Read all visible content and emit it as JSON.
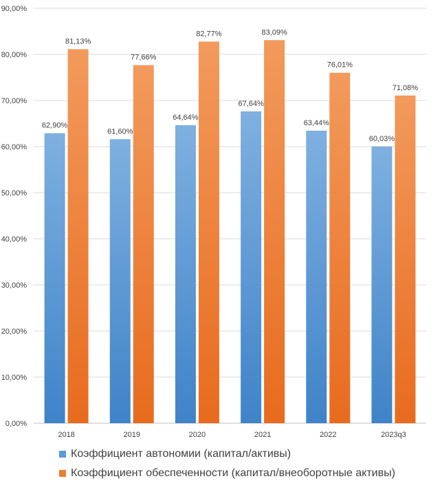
{
  "chart_data": {
    "type": "bar",
    "categories": [
      "2018",
      "2019",
      "2020",
      "2021",
      "2022",
      "2023q3"
    ],
    "series": [
      {
        "name": "Коэффициент автономии (капитал/активы)",
        "values": [
          62.9,
          61.6,
          64.64,
          67.64,
          63.44,
          60.03
        ],
        "labels": [
          "62,90%",
          "61,60%",
          "64,64%",
          "67,64%",
          "63,44%",
          "60,03%"
        ],
        "color": "#5B9BD5"
      },
      {
        "name": "Коэффициент обеспеченности (капитал/внеоборотные активы)",
        "values": [
          81.13,
          77.66,
          82.77,
          83.09,
          76.01,
          71.08
        ],
        "labels": [
          "81,13%",
          "77,66%",
          "82,77%",
          "83,09%",
          "76,01%",
          "71,08%"
        ],
        "color": "#ED7D31"
      }
    ],
    "ylim": [
      0,
      90
    ],
    "yticks": [
      0,
      10,
      20,
      30,
      40,
      50,
      60,
      70,
      80,
      90
    ],
    "ytick_labels": [
      "0,00%",
      "10,00%",
      "20,00%",
      "30,00%",
      "40,00%",
      "50,00%",
      "60,00%",
      "70,00%",
      "80,00%",
      "90,00%"
    ],
    "grid": true,
    "legend_position": "bottom-left"
  }
}
